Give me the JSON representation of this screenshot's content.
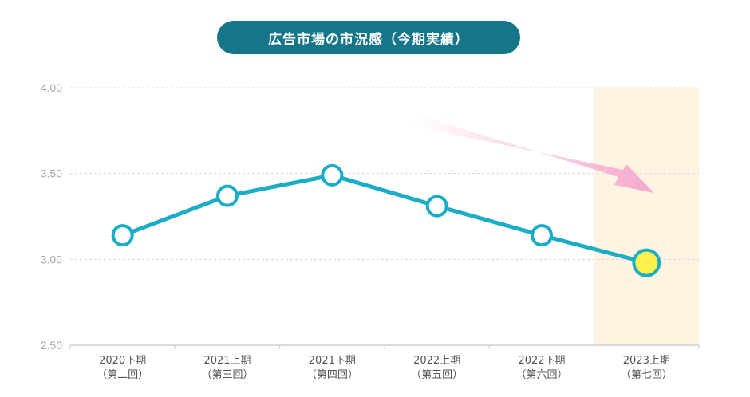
{
  "chart_data": {
    "type": "line",
    "title": "広告市場の市況感（今期実績）",
    "categories": [
      [
        "2020下期",
        "（第二回）"
      ],
      [
        "2021上期",
        "（第三回）"
      ],
      [
        "2021下期",
        "（第四回）"
      ],
      [
        "2022上期",
        "（第五回）"
      ],
      [
        "2022下期",
        "（第六回）"
      ],
      [
        "2023上期",
        "（第七回）"
      ]
    ],
    "series": [
      {
        "values": [
          3.14,
          3.37,
          3.49,
          3.31,
          3.14,
          2.98
        ]
      }
    ],
    "ylim": [
      2.5,
      4.0
    ],
    "yticks": [
      "2.50",
      "3.00",
      "3.50",
      "4.00"
    ],
    "grid": true,
    "highlight_category_index": 5,
    "trend_arrow": "down-right",
    "colors": {
      "line": "#1bacc8",
      "marker_fill": "#ffffff",
      "highlight_marker": "#fff04a",
      "highlight_band": "#fff4e2",
      "title_bg": "#15768a",
      "arrow": "#f5a9cf"
    }
  }
}
